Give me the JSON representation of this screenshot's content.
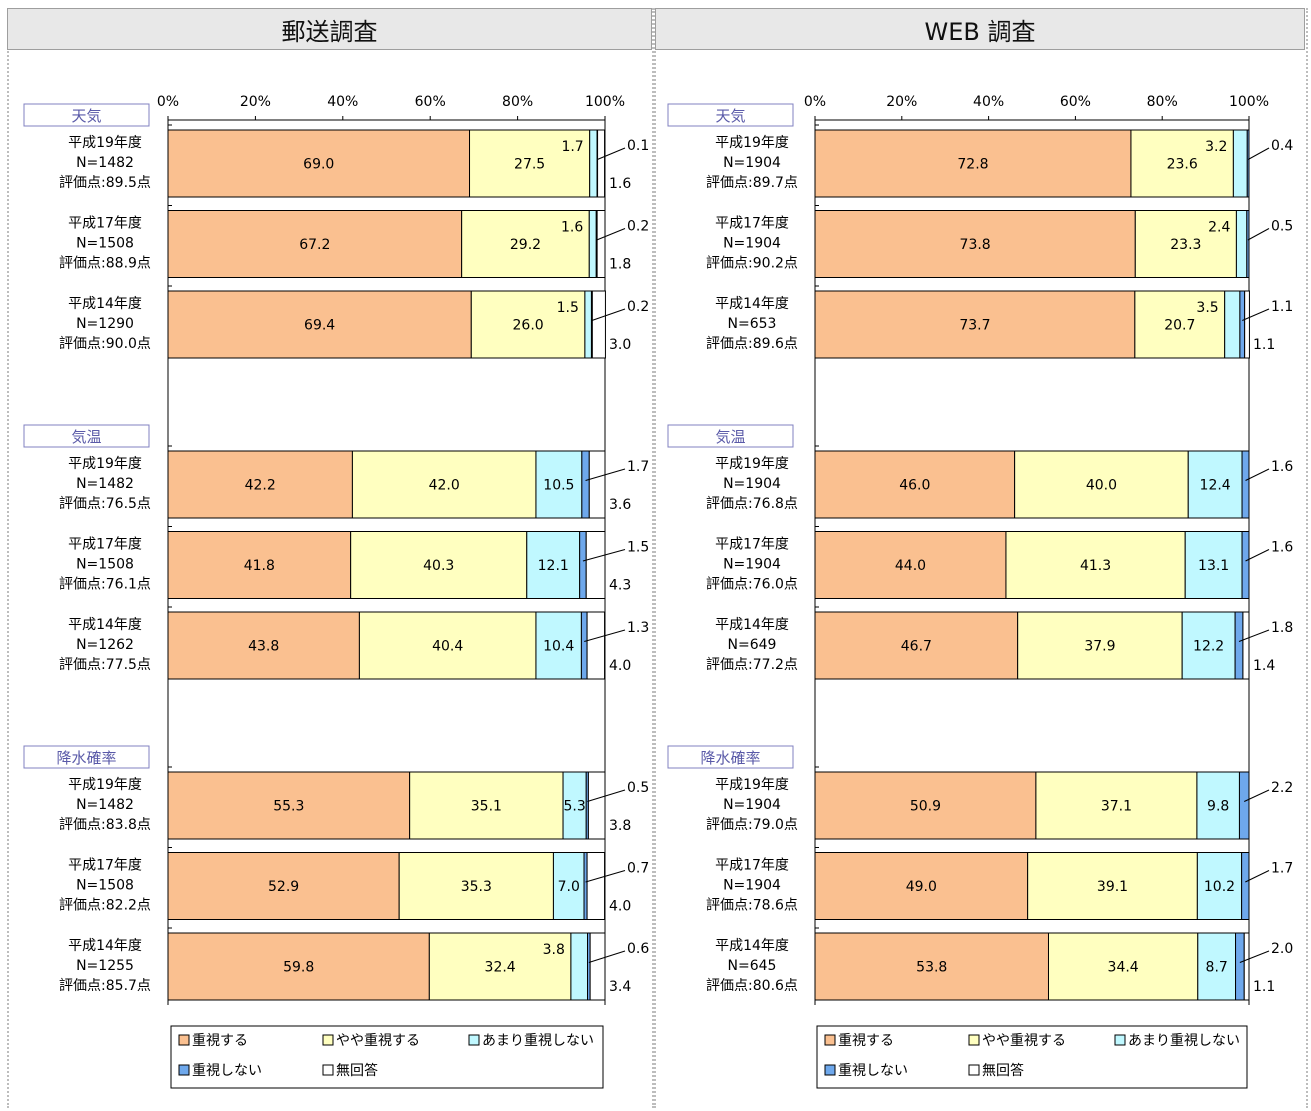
{
  "colors": {
    "series": [
      "#fac090",
      "#ffffc0",
      "#c0f8ff",
      "#6ea8ec",
      "#ffffff"
    ],
    "outline": "#000000",
    "category_text": "#5a5aa8",
    "category_border": "#8080c0"
  },
  "legend_labels": [
    "重視する",
    "やや重視する",
    "あまり重視しない",
    "重視しない",
    "無回答"
  ],
  "axis_ticks": [
    "0%",
    "20%",
    "40%",
    "60%",
    "80%",
    "100%"
  ],
  "chart_data": [
    {
      "type": "bar",
      "title": "郵送調査",
      "stacked": true,
      "orientation": "horizontal",
      "xlim": [
        0,
        100
      ],
      "series_names": [
        "重視する",
        "やや重視する",
        "あまり重視しない",
        "重視しない",
        "無回答"
      ],
      "groups": [
        {
          "label": "天気",
          "rows": [
            {
              "lines": [
                "平成19年度",
                "N=1482",
                "評価点:89.5点"
              ],
              "values": [
                69.0,
                27.5,
                1.7,
                0.1,
                1.6
              ]
            },
            {
              "lines": [
                "平成17年度",
                "N=1508",
                "評価点:88.9点"
              ],
              "values": [
                67.2,
                29.2,
                1.6,
                0.2,
                1.8
              ]
            },
            {
              "lines": [
                "平成14年度",
                "N=1290",
                "評価点:90.0点"
              ],
              "values": [
                69.4,
                26.0,
                1.5,
                0.2,
                3.0
              ]
            }
          ]
        },
        {
          "label": "気温",
          "rows": [
            {
              "lines": [
                "平成19年度",
                "N=1482",
                "評価点:76.5点"
              ],
              "values": [
                42.2,
                42.0,
                10.5,
                1.7,
                3.6
              ]
            },
            {
              "lines": [
                "平成17年度",
                "N=1508",
                "評価点:76.1点"
              ],
              "values": [
                41.8,
                40.3,
                12.1,
                1.5,
                4.3
              ]
            },
            {
              "lines": [
                "平成14年度",
                "N=1262",
                "評価点:77.5点"
              ],
              "values": [
                43.8,
                40.4,
                10.4,
                1.3,
                4.0
              ]
            }
          ]
        },
        {
          "label": "降水確率",
          "rows": [
            {
              "lines": [
                "平成19年度",
                "N=1482",
                "評価点:83.8点"
              ],
              "values": [
                55.3,
                35.1,
                5.3,
                0.5,
                3.8
              ]
            },
            {
              "lines": [
                "平成17年度",
                "N=1508",
                "評価点:82.2点"
              ],
              "values": [
                52.9,
                35.3,
                7.0,
                0.7,
                4.0
              ]
            },
            {
              "lines": [
                "平成14年度",
                "N=1255",
                "評価点:85.7点"
              ],
              "values": [
                59.8,
                32.4,
                3.8,
                0.6,
                3.4
              ]
            }
          ]
        }
      ]
    },
    {
      "type": "bar",
      "title": "WEB 調査",
      "stacked": true,
      "orientation": "horizontal",
      "xlim": [
        0,
        100
      ],
      "series_names": [
        "重視する",
        "やや重視する",
        "あまり重視しない",
        "重視しない",
        "無回答"
      ],
      "groups": [
        {
          "label": "天気",
          "rows": [
            {
              "lines": [
                "平成19年度",
                "N=1904",
                "評価点:89.7点"
              ],
              "values": [
                72.8,
                23.6,
                3.2,
                0.4,
                0.0
              ]
            },
            {
              "lines": [
                "平成17年度",
                "N=1904",
                "評価点:90.2点"
              ],
              "values": [
                73.8,
                23.3,
                2.4,
                0.5,
                0.0
              ]
            },
            {
              "lines": [
                "平成14年度",
                "N=653",
                "評価点:89.6点"
              ],
              "values": [
                73.7,
                20.7,
                3.5,
                1.1,
                1.1
              ]
            }
          ]
        },
        {
          "label": "気温",
          "rows": [
            {
              "lines": [
                "平成19年度",
                "N=1904",
                "評価点:76.8点"
              ],
              "values": [
                46.0,
                40.0,
                12.4,
                1.6,
                0.0
              ]
            },
            {
              "lines": [
                "平成17年度",
                "N=1904",
                "評価点:76.0点"
              ],
              "values": [
                44.0,
                41.3,
                13.1,
                1.6,
                0.0
              ]
            },
            {
              "lines": [
                "平成14年度",
                "N=649",
                "評価点:77.2点"
              ],
              "values": [
                46.7,
                37.9,
                12.2,
                1.8,
                1.4
              ]
            }
          ]
        },
        {
          "label": "降水確率",
          "rows": [
            {
              "lines": [
                "平成19年度",
                "N=1904",
                "評価点:79.0点"
              ],
              "values": [
                50.9,
                37.1,
                9.8,
                2.2,
                0.0
              ]
            },
            {
              "lines": [
                "平成17年度",
                "N=1904",
                "評価点:78.6点"
              ],
              "values": [
                49.0,
                39.1,
                10.2,
                1.7,
                0.0
              ]
            },
            {
              "lines": [
                "平成14年度",
                "N=645",
                "評価点:80.6点"
              ],
              "values": [
                53.8,
                34.4,
                8.7,
                2.0,
                1.1
              ]
            }
          ]
        }
      ]
    }
  ]
}
